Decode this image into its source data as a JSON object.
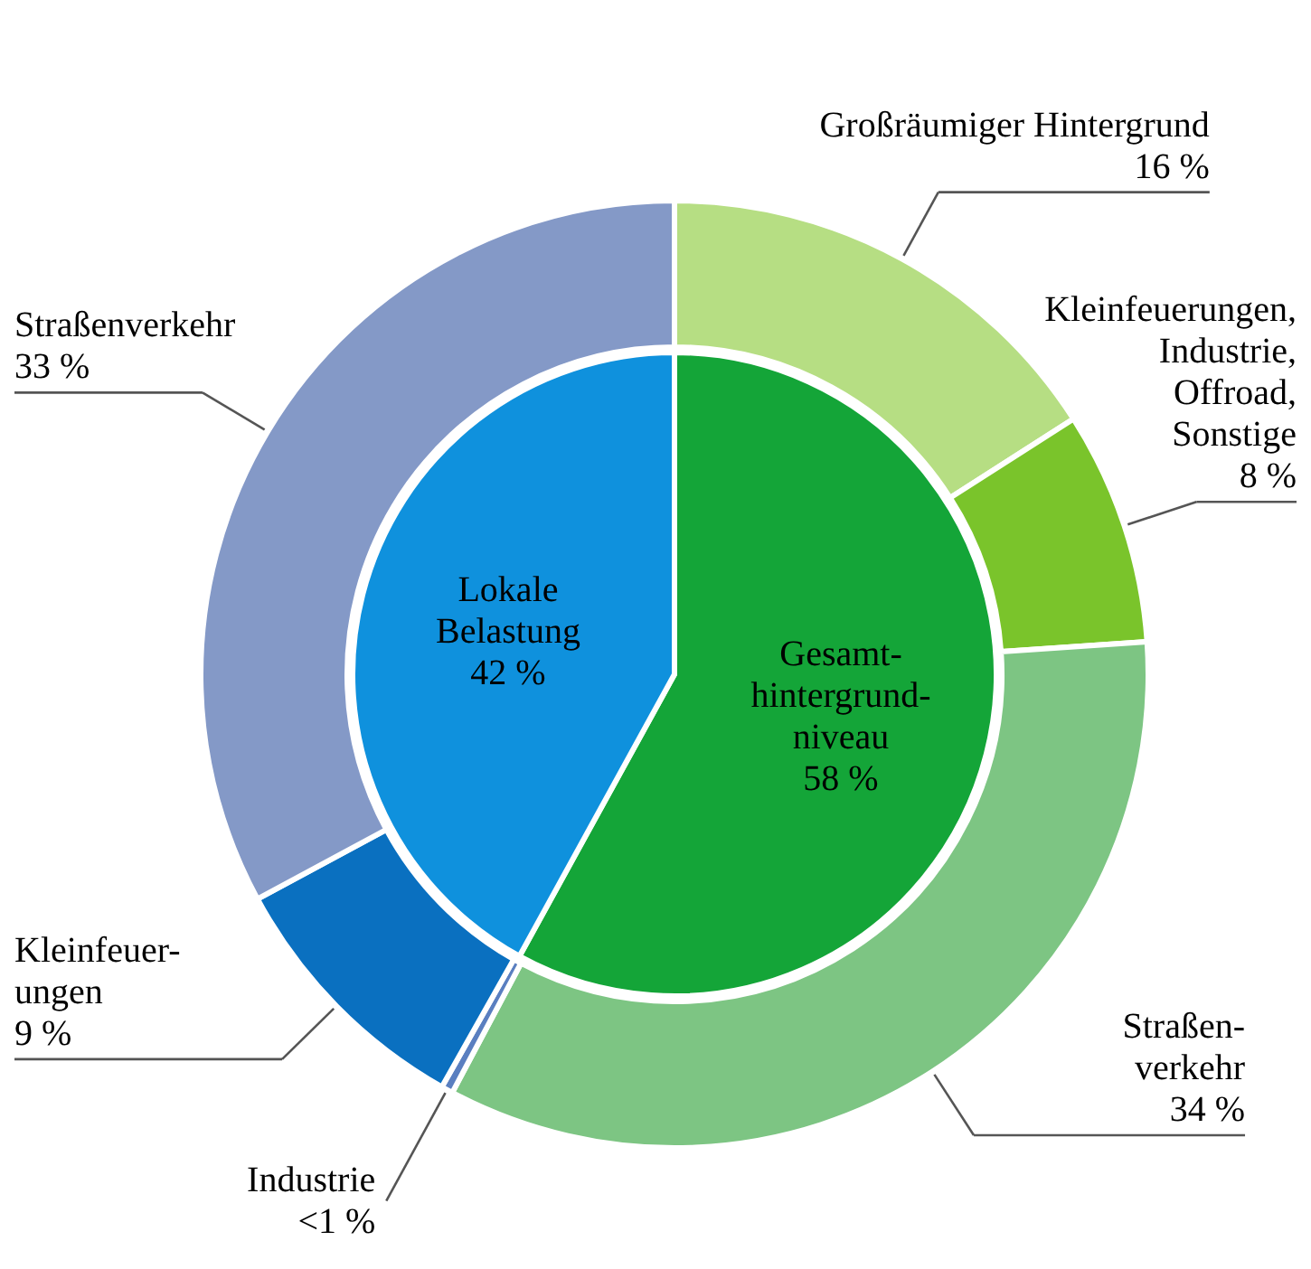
{
  "chart_data": [
    {
      "type": "pie",
      "categories": [
        "Gesamt-\nhintergrund-\nniveau",
        "Lokale\nBelastung"
      ],
      "values": [
        58,
        42
      ],
      "colors": [
        "#14a538",
        "#0f91dd"
      ],
      "value_labels": [
        "58 %",
        "42 %"
      ]
    },
    {
      "type": "donut",
      "categories": [
        "Großräumiger Hintergrund",
        "Kleinfeuerungen,\nIndustrie,\nOffroad,\nSonstige",
        "Straßen-\nverkehr",
        "Industrie",
        "Kleinfeuer-\nungen",
        "Straßenverkehr"
      ],
      "values": [
        16,
        8,
        34,
        0.4,
        9,
        33
      ],
      "colors": [
        "#b6de83",
        "#7ac42b",
        "#7dc583",
        "#5a7fc0",
        "#0a70c0",
        "#8499c7"
      ],
      "value_labels": [
        "16 %",
        "8 %",
        "34 %",
        "<1 %",
        "9 %",
        "33 %"
      ]
    }
  ]
}
